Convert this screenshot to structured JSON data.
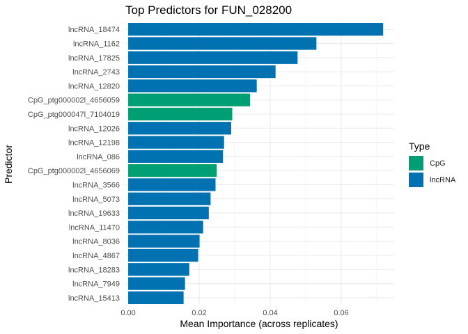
{
  "chart_data": {
    "type": "bar",
    "orientation": "horizontal",
    "title": "Top Predictors for FUN_028200",
    "xlabel": "Mean Importance (across replicates)",
    "ylabel": "Predictor",
    "xlim": [
      -0.0008,
      0.0749
    ],
    "xticks": [
      0.0,
      0.02,
      0.04,
      0.06
    ],
    "xtick_labels": [
      "0.00",
      "0.02",
      "0.04",
      "0.06"
    ],
    "grid": true,
    "legend": {
      "title": "Type",
      "position": "right",
      "entries": [
        {
          "label": "CpG",
          "color": "#009E73"
        },
        {
          "label": "lncRNA",
          "color": "#0072B2"
        }
      ]
    },
    "categories": [
      "lncRNA_18474",
      "lncRNA_1162",
      "lncRNA_17825",
      "lncRNA_2743",
      "lncRNA_12820",
      "CpG_ptg000002l_4656059",
      "CpG_ptg000047l_7104019",
      "lncRNA_12026",
      "lncRNA_12198",
      "lncRNA_086",
      "CpG_ptg000002l_4656069",
      "lncRNA_3566",
      "lncRNA_5073",
      "lncRNA_19633",
      "lncRNA_11470",
      "lncRNA_8036",
      "lncRNA_4867",
      "lncRNA_18283",
      "lncRNA_7949",
      "lncRNA_15413"
    ],
    "values": [
      0.0718,
      0.053,
      0.0477,
      0.0415,
      0.0362,
      0.0343,
      0.0293,
      0.029,
      0.027,
      0.0267,
      0.0249,
      0.0246,
      0.0232,
      0.0227,
      0.0211,
      0.0201,
      0.0197,
      0.0172,
      0.016,
      0.0156
    ],
    "types": [
      "lncRNA",
      "lncRNA",
      "lncRNA",
      "lncRNA",
      "lncRNA",
      "CpG",
      "CpG",
      "lncRNA",
      "lncRNA",
      "lncRNA",
      "CpG",
      "lncRNA",
      "lncRNA",
      "lncRNA",
      "lncRNA",
      "lncRNA",
      "lncRNA",
      "lncRNA",
      "lncRNA",
      "lncRNA"
    ]
  }
}
